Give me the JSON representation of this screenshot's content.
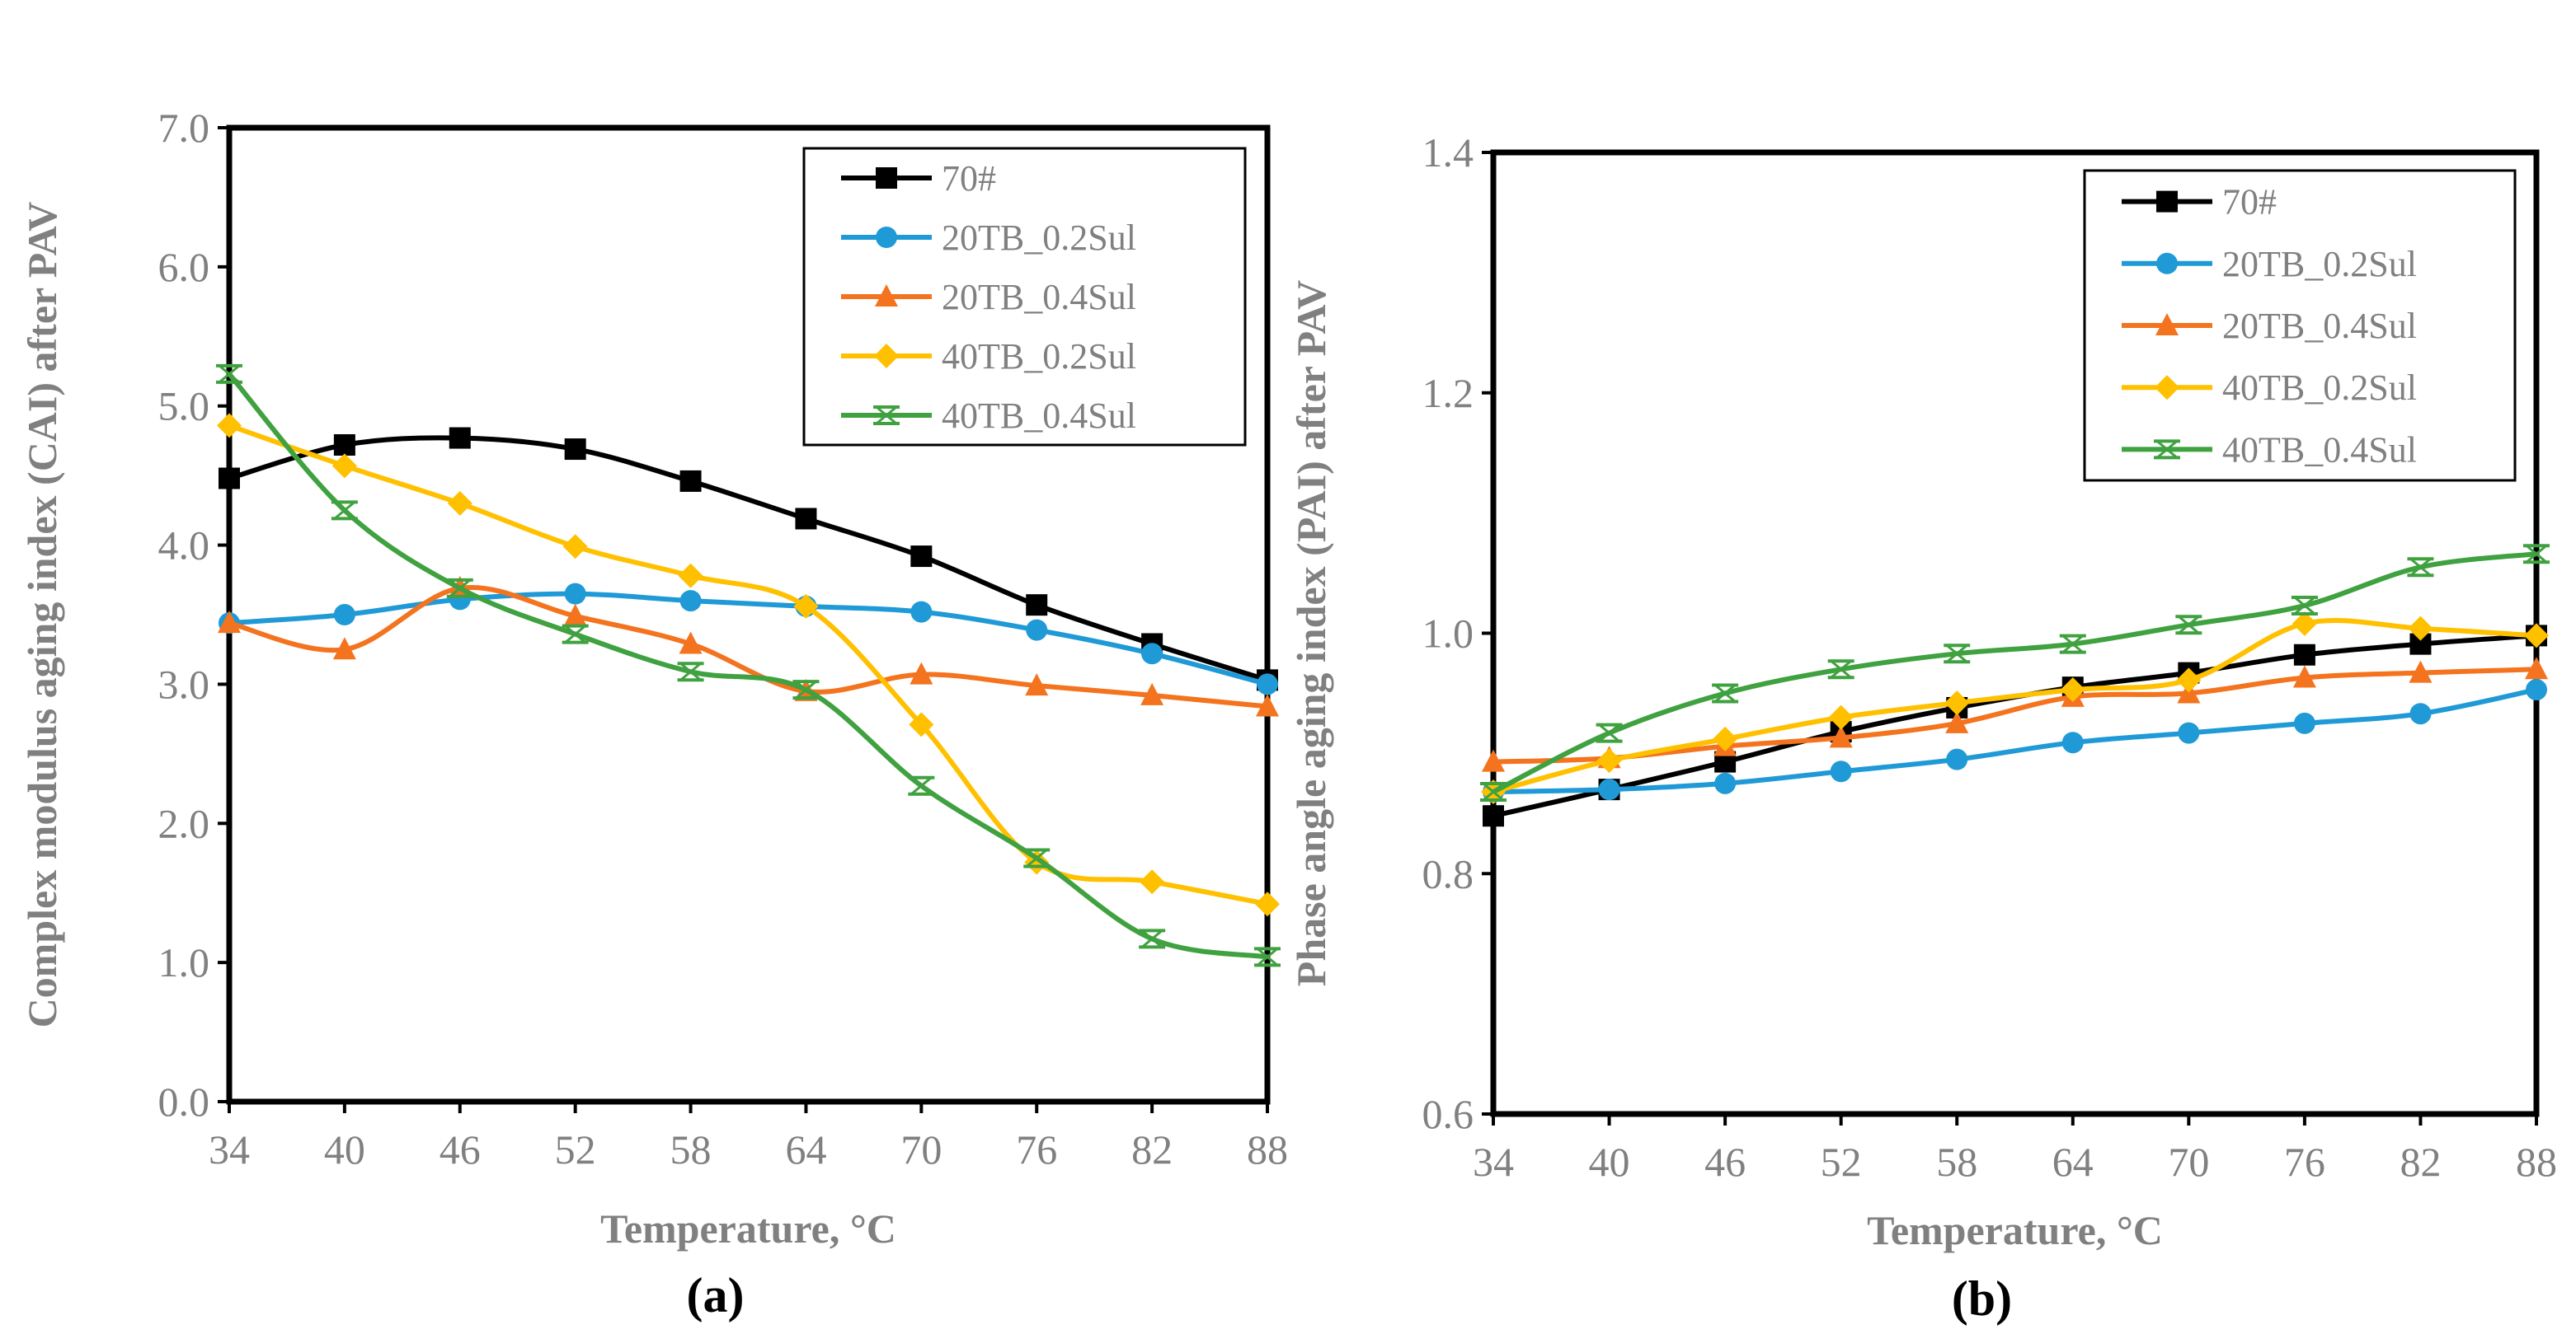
{
  "chart_data": [
    {
      "type": "line",
      "panel_label": "(a)",
      "xlabel": "Temperature, °C",
      "ylabel": "Complex modulus  aging index (CAI) after PAV",
      "x": [
        34,
        40,
        46,
        52,
        58,
        64,
        70,
        76,
        82,
        88
      ],
      "x_tick_labels": [
        "34",
        "40",
        "46",
        "52",
        "58",
        "64",
        "70",
        "76",
        "82",
        "88"
      ],
      "ylim": [
        0,
        7
      ],
      "y_ticks": [
        0,
        1,
        2,
        3,
        4,
        5,
        6,
        7
      ],
      "y_tick_labels": [
        "0.0",
        "1.0",
        "2.0",
        "3.0",
        "4.0",
        "5.0",
        "6.0",
        "7.0"
      ],
      "legend_position": "top-right",
      "series": [
        {
          "name": "70#",
          "color": "#000000",
          "marker": "square",
          "values": [
            4.48,
            4.72,
            4.77,
            4.69,
            4.46,
            4.19,
            3.92,
            3.57,
            3.29,
            3.03
          ]
        },
        {
          "name": "20TB_0.2Sul",
          "color": "#1f9ad6",
          "marker": "circle",
          "values": [
            3.44,
            3.5,
            3.61,
            3.65,
            3.6,
            3.56,
            3.52,
            3.39,
            3.22,
            3.0
          ]
        },
        {
          "name": "20TB_0.4Sul",
          "color": "#f4731e",
          "marker": "triangle",
          "values": [
            3.44,
            3.25,
            3.69,
            3.49,
            3.29,
            2.95,
            3.07,
            2.99,
            2.92,
            2.84
          ]
        },
        {
          "name": "40TB_0.2Sul",
          "color": "#ffc000",
          "marker": "diamond",
          "values": [
            4.86,
            4.57,
            4.3,
            3.99,
            3.78,
            3.56,
            2.71,
            1.72,
            1.58,
            1.42
          ]
        },
        {
          "name": "40TB_0.4Sul",
          "color": "#3fa13f",
          "marker": "star",
          "values": [
            5.23,
            4.25,
            3.69,
            3.36,
            3.09,
            2.96,
            2.27,
            1.75,
            1.17,
            1.04
          ]
        }
      ]
    },
    {
      "type": "line",
      "panel_label": "(b)",
      "xlabel": "Temperature, °C",
      "ylabel": "Phase angle aging index (PAI) after PAV",
      "x": [
        34,
        40,
        46,
        52,
        58,
        64,
        70,
        76,
        82,
        88
      ],
      "x_tick_labels": [
        "34",
        "40",
        "46",
        "52",
        "58",
        "64",
        "70",
        "76",
        "82",
        "88"
      ],
      "ylim": [
        0.6,
        1.4
      ],
      "y_ticks": [
        0.6,
        0.8,
        1.0,
        1.2,
        1.4
      ],
      "y_tick_labels": [
        "0.6",
        "0.8",
        "1.0",
        "1.2",
        "1.4"
      ],
      "legend_position": "top-right",
      "series": [
        {
          "name": "70#",
          "color": "#000000",
          "marker": "square",
          "values": [
            0.848,
            0.87,
            0.893,
            0.918,
            0.938,
            0.955,
            0.967,
            0.982,
            0.991,
            0.998
          ]
        },
        {
          "name": "20TB_0.2Sul",
          "color": "#1f9ad6",
          "marker": "circle",
          "values": [
            0.868,
            0.87,
            0.875,
            0.885,
            0.895,
            0.909,
            0.917,
            0.925,
            0.933,
            0.953
          ]
        },
        {
          "name": "20TB_0.4Sul",
          "color": "#f4731e",
          "marker": "triangle",
          "values": [
            0.893,
            0.896,
            0.906,
            0.913,
            0.925,
            0.947,
            0.95,
            0.963,
            0.967,
            0.97
          ]
        },
        {
          "name": "40TB_0.2Sul",
          "color": "#ffc000",
          "marker": "diamond",
          "values": [
            0.868,
            0.894,
            0.912,
            0.93,
            0.942,
            0.953,
            0.961,
            1.008,
            1.004,
            0.998
          ]
        },
        {
          "name": "40TB_0.4Sul",
          "color": "#3fa13f",
          "marker": "star",
          "values": [
            0.868,
            0.917,
            0.95,
            0.97,
            0.983,
            0.991,
            1.007,
            1.023,
            1.055,
            1.066
          ]
        }
      ]
    }
  ]
}
